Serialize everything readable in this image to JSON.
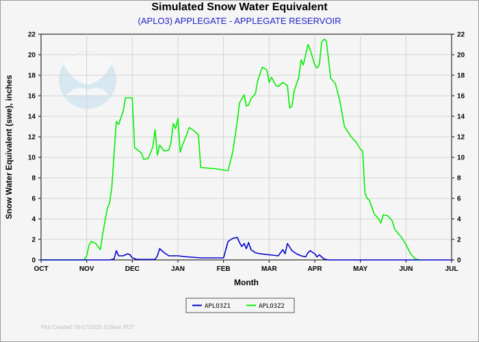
{
  "chart_data": {
    "type": "line",
    "title": "Simulated Snow Water Equivalent",
    "subtitle": "(APLO3) APPLEGATE - APPLEGATE RESERVOIR",
    "xlabel": "Month",
    "ylabel": "Snow Water Equivalent (swe),  inches",
    "x_unit": "months since Oct 1",
    "xlim": [
      0,
      9
    ],
    "ylim": [
      0,
      22
    ],
    "x_ticks": [
      {
        "x": 0,
        "label": "OCT"
      },
      {
        "x": 1,
        "label": "NOV"
      },
      {
        "x": 2,
        "label": "DEC"
      },
      {
        "x": 3,
        "label": "JAN"
      },
      {
        "x": 4,
        "label": "FEB"
      },
      {
        "x": 5,
        "label": "MAR"
      },
      {
        "x": 6,
        "label": "APR"
      },
      {
        "x": 7,
        "label": "MAY"
      },
      {
        "x": 8,
        "label": "JUN"
      },
      {
        "x": 9,
        "label": "JUL"
      }
    ],
    "y_ticks": [
      0,
      2,
      4,
      6,
      8,
      10,
      12,
      14,
      16,
      18,
      20,
      22
    ],
    "grid": true,
    "legend_position": "bottom-center",
    "series": [
      {
        "name": "APLO3Z1",
        "color": "#0000cc",
        "points": [
          [
            0,
            0
          ],
          [
            1.5,
            0
          ],
          [
            1.6,
            0.1
          ],
          [
            1.65,
            0.9
          ],
          [
            1.7,
            0.4
          ],
          [
            1.8,
            0.4
          ],
          [
            1.9,
            0.6
          ],
          [
            1.95,
            0.5
          ],
          [
            2.0,
            0.2
          ],
          [
            2.1,
            0.05
          ],
          [
            2.5,
            0.05
          ],
          [
            2.55,
            0.4
          ],
          [
            2.6,
            1.1
          ],
          [
            2.7,
            0.7
          ],
          [
            2.8,
            0.4
          ],
          [
            3.0,
            0.4
          ],
          [
            3.2,
            0.3
          ],
          [
            3.5,
            0.2
          ],
          [
            4.0,
            0.2
          ],
          [
            4.05,
            1.0
          ],
          [
            4.1,
            1.8
          ],
          [
            4.2,
            2.1
          ],
          [
            4.3,
            2.2
          ],
          [
            4.35,
            1.7
          ],
          [
            4.4,
            1.3
          ],
          [
            4.45,
            1.6
          ],
          [
            4.5,
            1.1
          ],
          [
            4.55,
            1.7
          ],
          [
            4.6,
            1.0
          ],
          [
            4.7,
            0.7
          ],
          [
            4.8,
            0.6
          ],
          [
            5.0,
            0.5
          ],
          [
            5.2,
            0.4
          ],
          [
            5.3,
            1.0
          ],
          [
            5.35,
            0.6
          ],
          [
            5.4,
            1.6
          ],
          [
            5.5,
            0.9
          ],
          [
            5.6,
            0.6
          ],
          [
            5.7,
            0.4
          ],
          [
            5.8,
            0.3
          ],
          [
            5.85,
            0.7
          ],
          [
            5.9,
            0.9
          ],
          [
            6.0,
            0.6
          ],
          [
            6.05,
            0.3
          ],
          [
            6.1,
            0.5
          ],
          [
            6.2,
            0.1
          ],
          [
            6.3,
            0
          ],
          [
            9,
            0
          ]
        ]
      },
      {
        "name": "APLO3Z2",
        "color": "#00ee00",
        "points": [
          [
            0,
            0
          ],
          [
            0.9,
            0
          ],
          [
            0.95,
            0.05
          ],
          [
            1.0,
            0.4
          ],
          [
            1.05,
            1.4
          ],
          [
            1.1,
            1.8
          ],
          [
            1.2,
            1.6
          ],
          [
            1.3,
            1.0
          ],
          [
            1.35,
            2.5
          ],
          [
            1.45,
            5.0
          ],
          [
            1.5,
            5.5
          ],
          [
            1.55,
            7.0
          ],
          [
            1.65,
            13.5
          ],
          [
            1.7,
            13.2
          ],
          [
            1.8,
            14.5
          ],
          [
            1.85,
            15.8
          ],
          [
            2.0,
            15.8
          ],
          [
            2.05,
            10.9
          ],
          [
            2.1,
            10.8
          ],
          [
            2.2,
            10.4
          ],
          [
            2.25,
            9.8
          ],
          [
            2.35,
            9.9
          ],
          [
            2.45,
            11.0
          ],
          [
            2.5,
            12.7
          ],
          [
            2.55,
            10.2
          ],
          [
            2.6,
            11.2
          ],
          [
            2.7,
            10.6
          ],
          [
            2.8,
            10.7
          ],
          [
            2.85,
            11.5
          ],
          [
            2.9,
            13.3
          ],
          [
            2.95,
            12.8
          ],
          [
            3.0,
            13.8
          ],
          [
            3.05,
            10.5
          ],
          [
            3.1,
            11.2
          ],
          [
            3.2,
            12.3
          ],
          [
            3.25,
            12.9
          ],
          [
            3.35,
            12.6
          ],
          [
            3.45,
            12.2
          ],
          [
            3.5,
            9.0
          ],
          [
            3.8,
            8.9
          ],
          [
            4.1,
            8.7
          ],
          [
            4.2,
            10.5
          ],
          [
            4.3,
            13.5
          ],
          [
            4.35,
            15.3
          ],
          [
            4.45,
            16.1
          ],
          [
            4.5,
            15.0
          ],
          [
            4.55,
            15.1
          ],
          [
            4.6,
            15.7
          ],
          [
            4.7,
            16.2
          ],
          [
            4.75,
            17.5
          ],
          [
            4.85,
            18.8
          ],
          [
            4.95,
            18.5
          ],
          [
            5.0,
            17.3
          ],
          [
            5.05,
            17.8
          ],
          [
            5.15,
            17.0
          ],
          [
            5.2,
            16.9
          ],
          [
            5.3,
            17.3
          ],
          [
            5.4,
            17.0
          ],
          [
            5.45,
            14.8
          ],
          [
            5.5,
            15.0
          ],
          [
            5.55,
            16.5
          ],
          [
            5.65,
            17.8
          ],
          [
            5.7,
            19.5
          ],
          [
            5.75,
            19.0
          ],
          [
            5.8,
            20.0
          ],
          [
            5.85,
            21.0
          ],
          [
            5.9,
            20.5
          ],
          [
            6.0,
            19.0
          ],
          [
            6.05,
            18.7
          ],
          [
            6.1,
            19.0
          ],
          [
            6.15,
            21.2
          ],
          [
            6.2,
            21.5
          ],
          [
            6.25,
            21.4
          ],
          [
            6.3,
            19.6
          ],
          [
            6.35,
            17.7
          ],
          [
            6.45,
            17.2
          ],
          [
            6.55,
            15.5
          ],
          [
            6.65,
            13.0
          ],
          [
            6.8,
            12.0
          ],
          [
            6.9,
            11.5
          ],
          [
            7.0,
            10.8
          ],
          [
            7.05,
            10.6
          ],
          [
            7.1,
            6.5
          ],
          [
            7.15,
            6.0
          ],
          [
            7.2,
            5.8
          ],
          [
            7.3,
            4.5
          ],
          [
            7.4,
            4.0
          ],
          [
            7.45,
            3.6
          ],
          [
            7.5,
            4.4
          ],
          [
            7.6,
            4.3
          ],
          [
            7.7,
            3.8
          ],
          [
            7.75,
            3.0
          ],
          [
            7.9,
            2.2
          ],
          [
            8.0,
            1.5
          ],
          [
            8.1,
            0.6
          ],
          [
            8.2,
            0.1
          ],
          [
            8.3,
            0
          ]
        ]
      }
    ]
  },
  "footer": {
    "plot_created": "Plot Created:  06/17/2025 3:09am PDT"
  }
}
